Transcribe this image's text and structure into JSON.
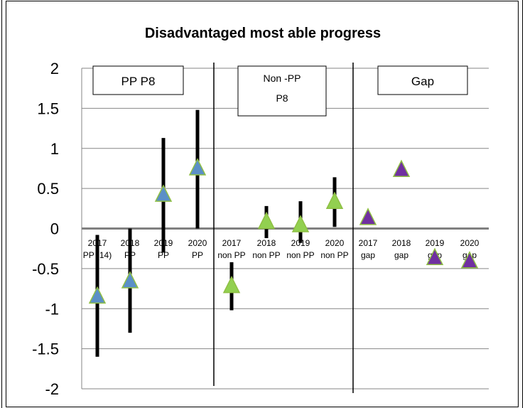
{
  "chart_data": {
    "type": "scatter",
    "title": "Disadvantaged most able progress",
    "xlabel": "",
    "ylabel": "",
    "ylim": [
      -2,
      2
    ],
    "yticks": [
      "2",
      "1.5",
      "1",
      "0.5",
      "0",
      "-0.5",
      "-1",
      "-1.5",
      "-2"
    ],
    "grid": true,
    "panels": [
      {
        "label_lines": [
          "PP  P8"
        ]
      },
      {
        "label_lines": [
          "Non -PP",
          "P8"
        ]
      },
      {
        "label_lines": [
          "Gap"
        ]
      }
    ],
    "categories": [
      {
        "line1": "2017",
        "line2": "PP (14)"
      },
      {
        "line1": "2018",
        "line2": "PP"
      },
      {
        "line1": "2019",
        "line2": "PP"
      },
      {
        "line1": "2020",
        "line2": "PP"
      },
      {
        "line1": "2017",
        "line2": "non PP"
      },
      {
        "line1": "2018",
        "line2": "non PP"
      },
      {
        "line1": "2019",
        "line2": "non PP"
      },
      {
        "line1": "2020",
        "line2": "non PP"
      },
      {
        "line1": "2017",
        "line2": "gap"
      },
      {
        "line1": "2018",
        "line2": "gap"
      },
      {
        "line1": "2019",
        "line2": "gap"
      },
      {
        "line1": "2020",
        "line2": "gap"
      }
    ],
    "series": [
      {
        "values": [
          -0.85,
          -0.66,
          0.42,
          0.75
        ],
        "low": [
          -1.6,
          -1.3,
          -0.3,
          0.0
        ],
        "high": [
          -0.08,
          0.0,
          1.13,
          1.48
        ],
        "category_start": 0,
        "color": "#5b8fc7",
        "stroke": "#8fbf44"
      },
      {
        "values": [
          -0.72,
          0.08,
          0.04,
          0.33
        ],
        "low": [
          -1.02,
          -0.12,
          -0.18,
          0.02
        ],
        "high": [
          -0.42,
          0.28,
          0.34,
          0.64
        ],
        "category_start": 4,
        "color": "#92d050",
        "stroke": "#8fbf44"
      },
      {
        "values": [
          0.13,
          0.73,
          -0.37,
          -0.41
        ],
        "category_start": 8,
        "color": "#7030a0",
        "stroke": "#8fbf44"
      }
    ]
  }
}
